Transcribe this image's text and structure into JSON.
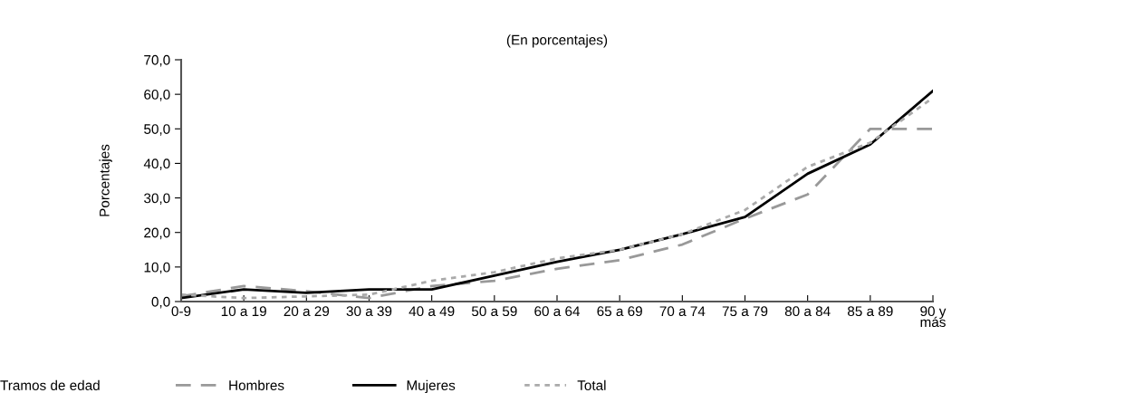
{
  "chart_data": {
    "type": "line",
    "title": "(En porcentajes)",
    "ylabel": "Porcentajes",
    "legend_title": "Tramos de edad",
    "categories": [
      "0-9",
      "10 a 19",
      "20 a 29",
      "30 a 39",
      "40 a 49",
      "50 a 59",
      "60 a 64",
      "65 a 69",
      "70 a 74",
      "75 a 79",
      "80 a 84",
      "85 a 89",
      "90 y\nmás"
    ],
    "series": [
      {
        "name": "Hombres",
        "color": "#999999",
        "line_style": "dashed",
        "values": [
          1.5,
          4.5,
          3,
          1,
          4.5,
          6,
          9.5,
          12,
          16.5,
          24,
          31,
          50,
          50
        ]
      },
      {
        "name": "Mujeres",
        "color": "#000000",
        "line_style": "solid",
        "values": [
          1,
          3.5,
          2.5,
          3.5,
          3.5,
          7.5,
          11.5,
          15,
          19.5,
          24.5,
          37,
          45.5,
          61
        ]
      },
      {
        "name": "Total",
        "color": "#aaaaaa",
        "line_style": "dotted",
        "values": [
          2,
          1,
          1.5,
          2,
          6,
          8.5,
          12.5,
          15,
          19.5,
          26.5,
          39,
          46,
          59
        ]
      }
    ],
    "ylim": [
      0,
      70
    ],
    "yticks": [
      {
        "value": 0,
        "label": "0,0"
      },
      {
        "value": 10,
        "label": "10,0"
      },
      {
        "value": 20,
        "label": "20,0"
      },
      {
        "value": 30,
        "label": "30,0"
      },
      {
        "value": 40,
        "label": "40,0"
      },
      {
        "value": 50,
        "label": "50,0"
      },
      {
        "value": 60,
        "label": "60,0"
      },
      {
        "value": 70,
        "label": "70,0"
      }
    ],
    "grid": false,
    "legend": "bottom",
    "marker": "none"
  }
}
